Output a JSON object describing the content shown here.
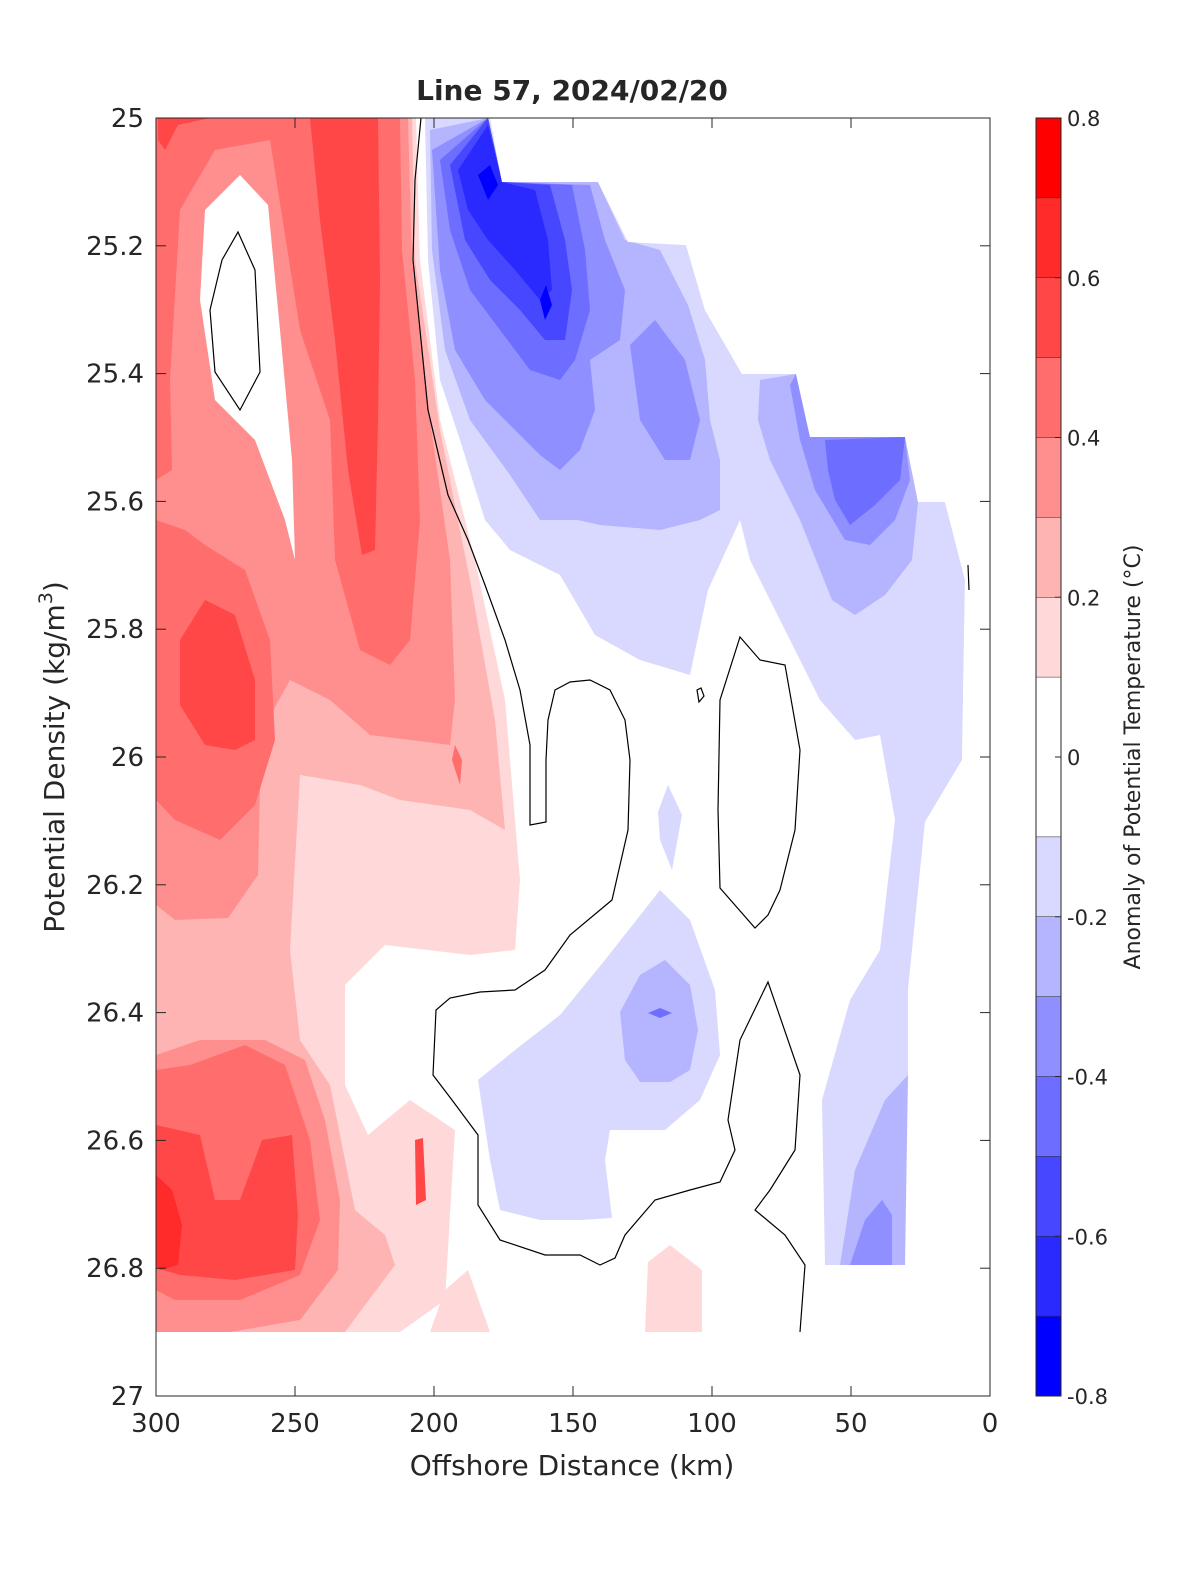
{
  "chart_data": {
    "type": "contour",
    "title": "Line 57, 2024/02/20",
    "xlabel": "Offshore Distance (km)",
    "ylabel": "Potential Density (kg/m³)",
    "ylabel_parts": {
      "main": "Potential Density (kg/m",
      "sup": "3",
      "end": ")"
    },
    "colorbar_label": "Anomaly of Potential Temperature (°C)",
    "xlim": [
      300,
      0
    ],
    "x_reversed": true,
    "ylim": [
      25,
      27
    ],
    "y_reversed": true,
    "x_ticks": [
      300,
      250,
      200,
      150,
      100,
      50,
      0
    ],
    "x_tick_labels": [
      "300",
      "250",
      "200",
      "150",
      "100",
      "50",
      "0"
    ],
    "y_ticks": [
      25,
      25.2,
      25.4,
      25.6,
      25.8,
      26,
      26.2,
      26.4,
      26.6,
      26.8,
      27
    ],
    "y_tick_labels": [
      "25",
      "25.2",
      "25.4",
      "25.6",
      "25.8",
      "26",
      "26.2",
      "26.4",
      "26.6",
      "26.8",
      "27"
    ],
    "colorbar_ticks": [
      0.8,
      0.6,
      0.4,
      0.2,
      0,
      -0.2,
      -0.4,
      -0.6,
      -0.8
    ],
    "colorbar_tick_labels": [
      "0.8",
      "0.6",
      "0.4",
      "0.2",
      "0",
      "-0.2",
      "-0.4",
      "-0.6",
      "-0.8"
    ],
    "color_levels": [
      {
        "range": [
          0.7,
          0.8
        ],
        "color": "#ff0000"
      },
      {
        "range": [
          0.6,
          0.7
        ],
        "color": "#ff2a2a"
      },
      {
        "range": [
          0.5,
          0.6
        ],
        "color": "#ff4747"
      },
      {
        "range": [
          0.4,
          0.5
        ],
        "color": "#ff6d6d"
      },
      {
        "range": [
          0.3,
          0.4
        ],
        "color": "#ff8f8f"
      },
      {
        "range": [
          0.2,
          0.3
        ],
        "color": "#ffb4b4"
      },
      {
        "range": [
          0.1,
          0.2
        ],
        "color": "#ffd9d9"
      },
      {
        "range": [
          -0.1,
          0.1
        ],
        "color": "#ffffff"
      },
      {
        "range": [
          -0.2,
          -0.1
        ],
        "color": "#d9d9ff"
      },
      {
        "range": [
          -0.3,
          -0.2
        ],
        "color": "#b4b4ff"
      },
      {
        "range": [
          -0.4,
          -0.3
        ],
        "color": "#8f8fff"
      },
      {
        "range": [
          -0.5,
          -0.4
        ],
        "color": "#6d6dff"
      },
      {
        "range": [
          -0.6,
          -0.5
        ],
        "color": "#4747ff"
      },
      {
        "range": [
          -0.7,
          -0.6
        ],
        "color": "#2a2aff"
      },
      {
        "range": [
          -0.8,
          -0.7
        ],
        "color": "#0000ff"
      }
    ],
    "zero_contour_color": "#000000",
    "anomaly_field": [
      {
        "x": 300,
        "y": 25.1,
        "value": 0.55
      },
      {
        "x": 270,
        "y": 25.3,
        "value": 0.0
      },
      {
        "x": 230,
        "y": 25.4,
        "value": 0.6
      },
      {
        "x": 210,
        "y": 25.2,
        "value": 0.4
      },
      {
        "x": 180,
        "y": 25.1,
        "value": -0.65
      },
      {
        "x": 160,
        "y": 25.3,
        "value": -0.7
      },
      {
        "x": 120,
        "y": 25.4,
        "value": -0.45
      },
      {
        "x": 40,
        "y": 25.6,
        "value": -0.45
      },
      {
        "x": 275,
        "y": 25.9,
        "value": 0.55
      },
      {
        "x": 225,
        "y": 25.9,
        "value": 0.35
      },
      {
        "x": 90,
        "y": 26.0,
        "value": 0.0
      },
      {
        "x": 140,
        "y": 26.1,
        "value": 0.0
      },
      {
        "x": 120,
        "y": 26.4,
        "value": -0.3
      },
      {
        "x": 290,
        "y": 26.7,
        "value": 0.65
      },
      {
        "x": 250,
        "y": 26.3,
        "value": 0.2
      },
      {
        "x": 40,
        "y": 26.8,
        "value": -0.3
      },
      {
        "x": 110,
        "y": 26.85,
        "value": 0.15
      }
    ]
  }
}
